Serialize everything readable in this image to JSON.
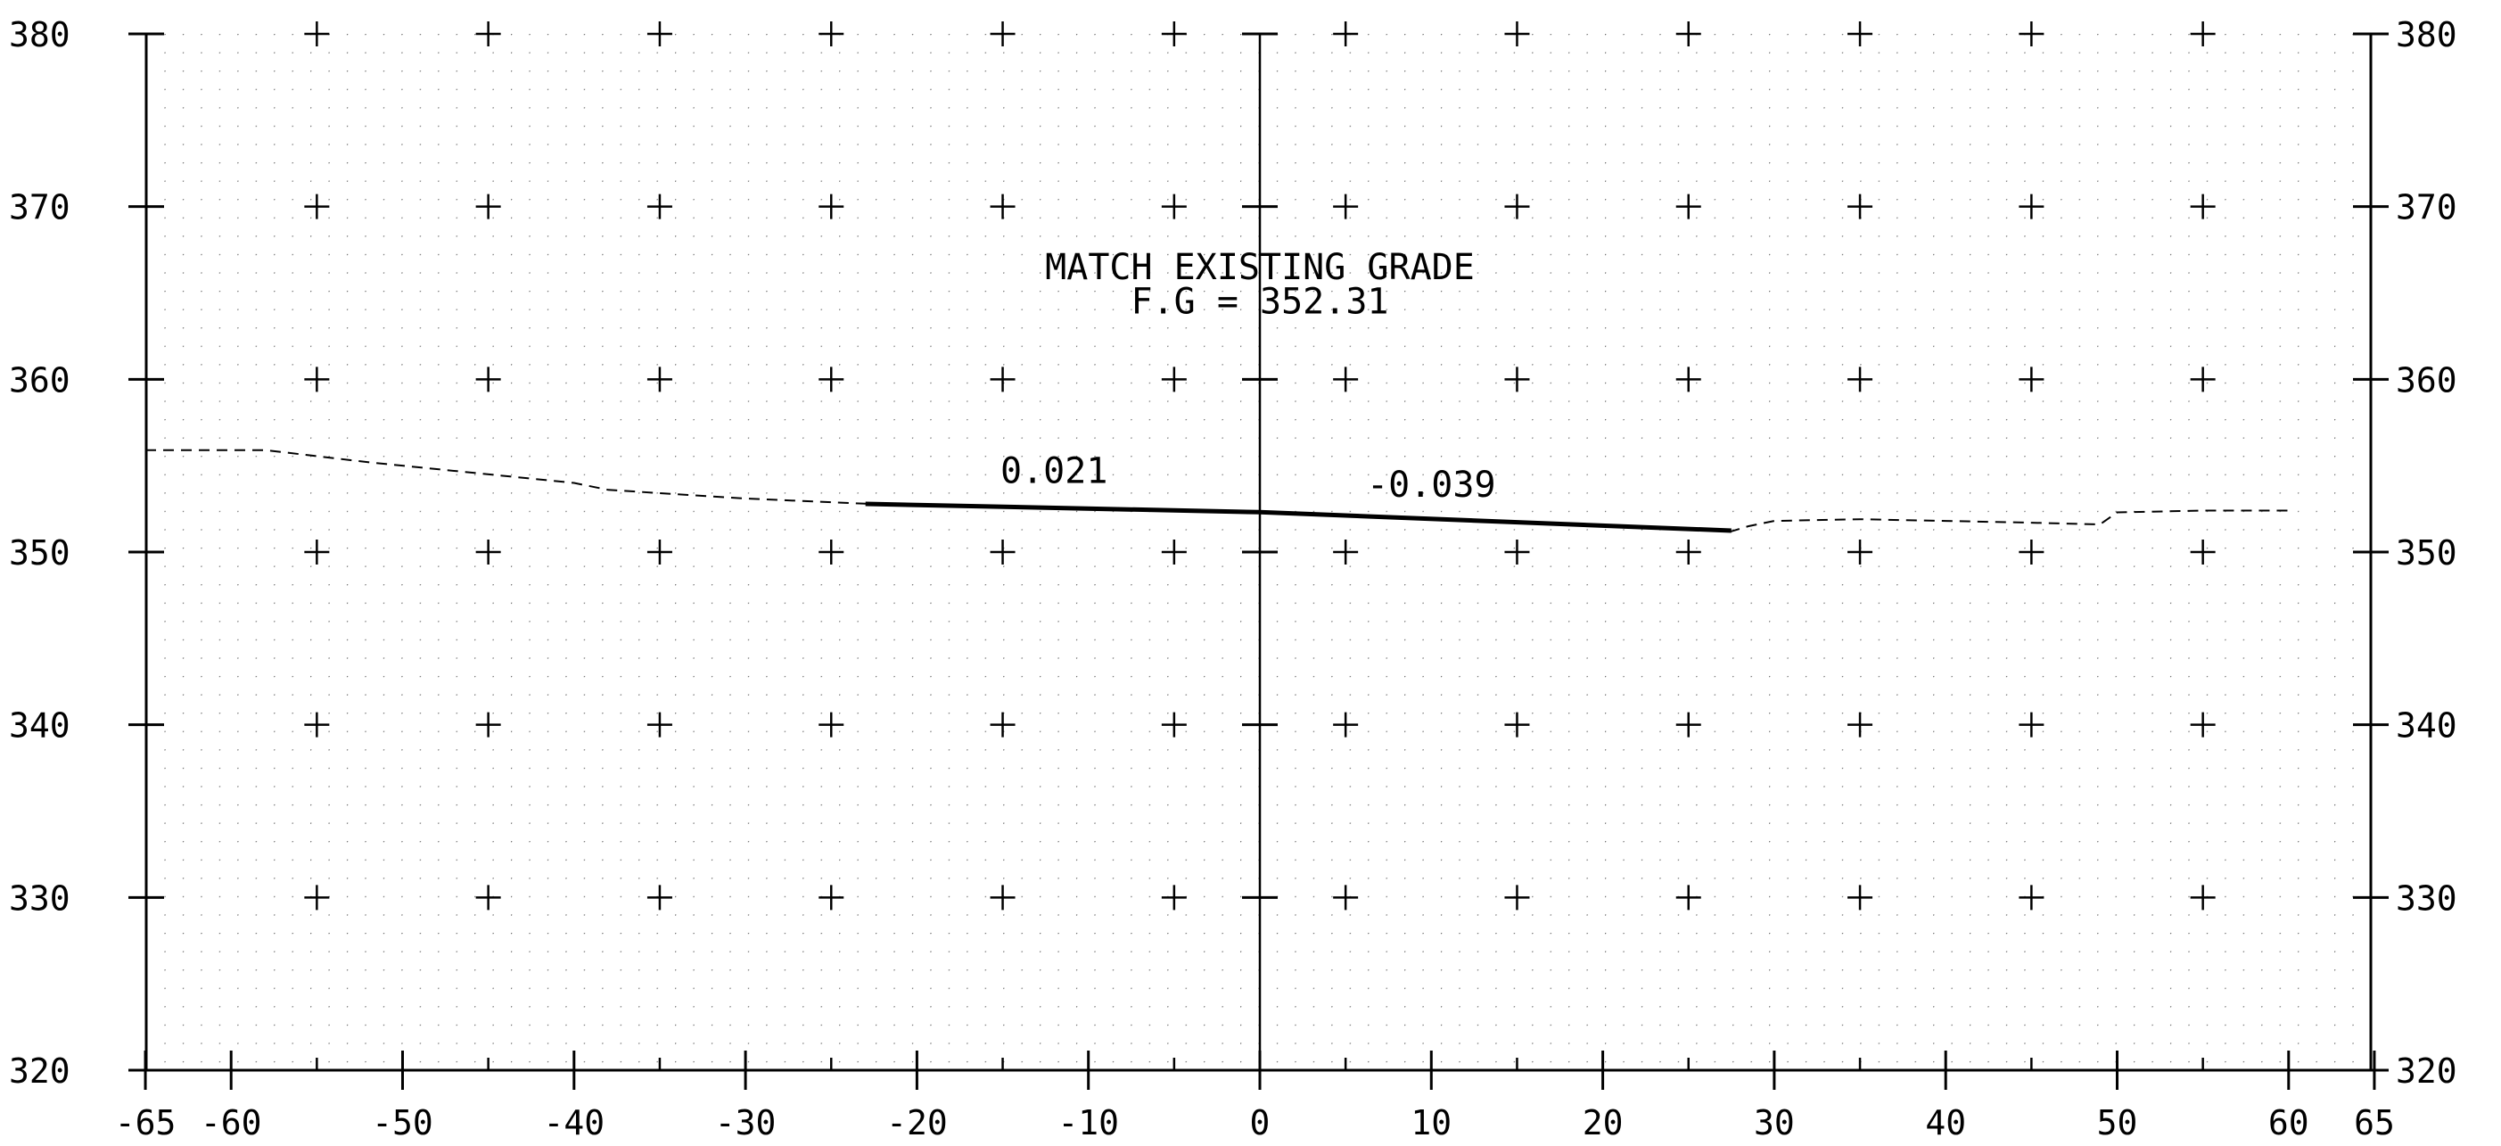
{
  "chart_data": {
    "type": "line",
    "title": "",
    "xlabel": "",
    "ylabel": "",
    "xlim": [
      -65,
      65
    ],
    "ylim": [
      320,
      380
    ],
    "x_ticks": [
      -65,
      -60,
      -50,
      -40,
      -30,
      -20,
      -10,
      0,
      10,
      20,
      30,
      40,
      50,
      60,
      65
    ],
    "x_tick_labels": [
      "-65",
      "-60",
      "-50",
      "-40",
      "-30",
      "-20",
      "-10",
      "0",
      "10",
      "20",
      "30",
      "40",
      "50",
      "60",
      "65"
    ],
    "y_ticks": [
      320,
      330,
      340,
      350,
      360,
      370,
      380
    ],
    "y_tick_labels": [
      "320",
      "330",
      "340",
      "350",
      "360",
      "370",
      "380"
    ],
    "minor_x_ticks": [
      -55,
      -45,
      -35,
      -25,
      -15,
      -5,
      5,
      15,
      25,
      35,
      45,
      55
    ],
    "grid": "dotted",
    "series": [
      {
        "style": "dashed",
        "x": [
          -65,
          -58,
          -52,
          -46,
          -40,
          -38,
          -30,
          -23,
          -15,
          -5,
          0,
          10,
          20,
          27.5,
          28.5,
          30,
          35,
          40,
          45,
          49,
          50,
          55,
          60
        ],
        "y": [
          355.9,
          355.9,
          355.2,
          354.6,
          354.0,
          353.6,
          353.1,
          352.8,
          352.6,
          352.4,
          352.3,
          351.9,
          351.5,
          351.2,
          351.5,
          351.8,
          351.9,
          351.8,
          351.7,
          351.6,
          352.3,
          352.4,
          352.4
        ]
      },
      {
        "style": "solid",
        "x": [
          -23,
          0,
          27.5
        ],
        "y": [
          352.79,
          352.31,
          351.24
        ]
      }
    ],
    "annotations": [
      {
        "text": "MATCH EXISTING GRADE",
        "x": 0,
        "y": 365.8
      },
      {
        "text": "F.G = 352.31",
        "x": 0,
        "y": 363.8
      },
      {
        "text": "0.021",
        "x": -12,
        "y": 354.0
      },
      {
        "text": "-0.039",
        "x": 10,
        "y": 353.2
      }
    ]
  }
}
